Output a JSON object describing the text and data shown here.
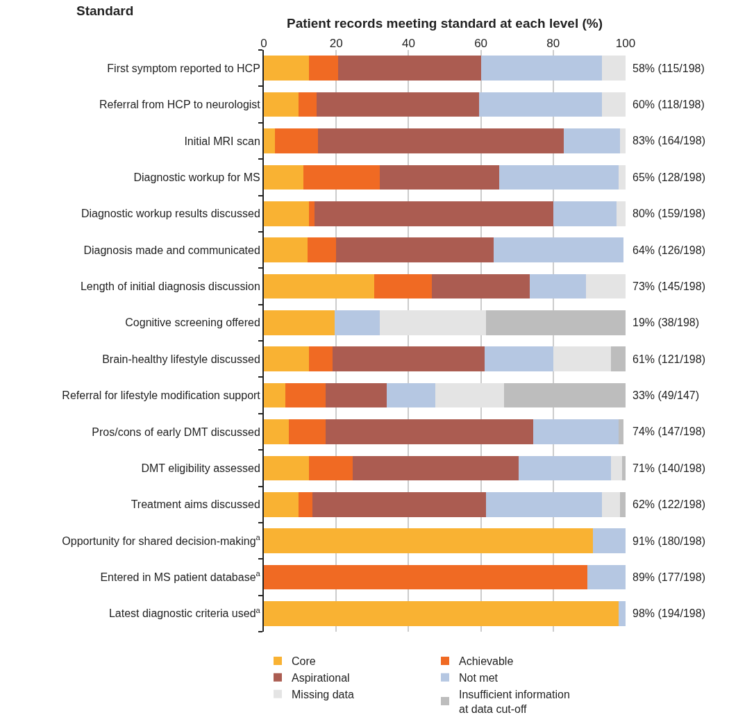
{
  "chart_data": {
    "type": "bar",
    "orientation": "horizontal",
    "stacked": true,
    "xlabel": "Patient records meeting standard at each level (%)",
    "ylabel": "Standard",
    "categories": [
      "First symptom reported to HCP",
      "Referral from HCP to neurologist",
      "Initial MRI scan",
      "Diagnostic workup for MS",
      "Diagnostic workup results discussed",
      "Diagnosis made and communicated",
      "Length of initial diagnosis discussion",
      "Cognitive screening offered",
      "Brain-healthy lifestyle discussed",
      "Referral for lifestyle modification support",
      "Pros/cons of early DMT discussed",
      "DMT eligibility assessed",
      "Treatment aims discussed",
      "Opportunity for shared decision-making$^{a}$",
      "Entered in MS patient database$^{a}$",
      "Latest diagnostic criteria used$^{a}$"
    ],
    "series": [
      {
        "name": "Core",
        "color": "#f9b233",
        "values": [
          12.5,
          9.5,
          3,
          11,
          12.5,
          12,
          30.5,
          19.5,
          12.5,
          6,
          7,
          12.5,
          9.5,
          91,
          null,
          98
        ]
      },
      {
        "name": "Achievable",
        "color": "#f06a23",
        "values": [
          8,
          5,
          12,
          21,
          1.5,
          8,
          16,
          null,
          6.5,
          11,
          10,
          12,
          4,
          null,
          89.5,
          null
        ]
      },
      {
        "name": "Aspirational",
        "color": "#ab5c51",
        "values": [
          39.5,
          45,
          68,
          33,
          66,
          43.5,
          27,
          null,
          42,
          17,
          57.5,
          46,
          48,
          null,
          null,
          null
        ]
      },
      {
        "name": "Not met",
        "color": "#b5c7e2",
        "values": [
          33.5,
          34,
          15.5,
          33,
          17.5,
          36,
          15.5,
          12.5,
          19,
          13.5,
          23.5,
          25.5,
          32,
          9,
          10.5,
          2
        ]
      },
      {
        "name": "Missing data",
        "color": "#e4e4e4",
        "values": [
          6.5,
          6.5,
          1.5,
          2,
          2.5,
          null,
          11,
          29.5,
          16,
          19,
          null,
          3,
          5,
          null,
          null,
          null
        ]
      },
      {
        "name": "Insufficient information at data cut-off",
        "color": "#bdbdbd",
        "values": [
          null,
          null,
          null,
          null,
          null,
          null,
          null,
          38.5,
          4,
          33.5,
          1.5,
          1,
          1.5,
          null,
          null,
          null
        ]
      }
    ],
    "totals": [
      "58% (115/198)",
      "60% (118/198)",
      "83% (164/198)",
      "65% (128/198)",
      "80% (159/198)",
      "64% (126/198)",
      "73% (145/198)",
      "19% (38/198)",
      "61% (121/198)",
      "33% (49/147)",
      "74% (147/198)",
      "71% (140/198)",
      "62% (122/198)",
      "91% (180/198)",
      "89% (177/198)",
      "98% (194/198)"
    ],
    "xlim": [
      0,
      100
    ],
    "xticks": [
      0,
      20,
      40,
      60,
      80,
      100
    ],
    "grid": "x",
    "legend": "bottom"
  }
}
